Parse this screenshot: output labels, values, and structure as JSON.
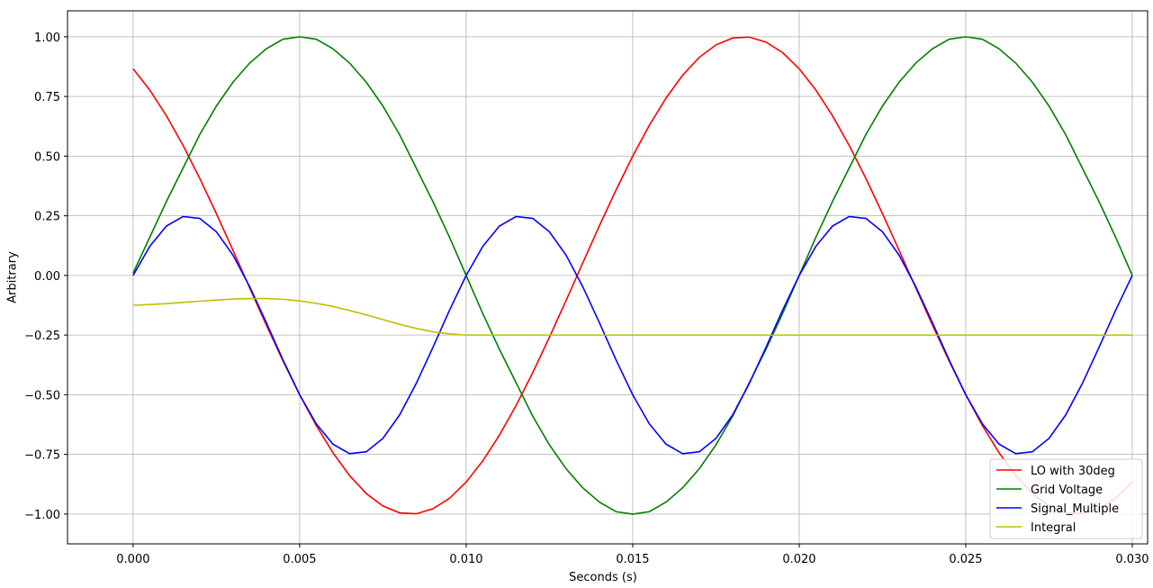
{
  "chart_data": {
    "type": "line",
    "xlabel": "Seconds (s)",
    "ylabel": "Arbitrary",
    "x": [
      0,
      0.0005,
      0.001,
      0.0015,
      0.002,
      0.0025,
      0.003,
      0.0035,
      0.004,
      0.0045,
      0.005,
      0.0055,
      0.006,
      0.0065,
      0.007,
      0.0075,
      0.008,
      0.0085,
      0.009,
      0.0095,
      0.01,
      0.0105,
      0.011,
      0.0115,
      0.012,
      0.0125,
      0.013,
      0.0135,
      0.014,
      0.0145,
      0.015,
      0.0155,
      0.016,
      0.0165,
      0.017,
      0.0175,
      0.018,
      0.0185,
      0.019,
      0.0195,
      0.02,
      0.0205,
      0.021,
      0.0215,
      0.022,
      0.0225,
      0.023,
      0.0235,
      0.024,
      0.0245,
      0.025,
      0.0255,
      0.026,
      0.0265,
      0.027,
      0.0275,
      0.028,
      0.0285,
      0.029,
      0.0295,
      0.03
    ],
    "series": [
      {
        "name": "LO with 30deg",
        "color": "#ff0000",
        "values": [
          0.866,
          0.777,
          0.669,
          0.545,
          0.407,
          0.259,
          0.105,
          -0.052,
          -0.208,
          -0.358,
          -0.5,
          -0.629,
          -0.743,
          -0.839,
          -0.914,
          -0.966,
          -0.995,
          -0.999,
          -0.978,
          -0.934,
          -0.866,
          -0.777,
          -0.669,
          -0.545,
          -0.407,
          -0.259,
          -0.105,
          0.052,
          0.208,
          0.358,
          0.5,
          0.629,
          0.743,
          0.839,
          0.914,
          0.966,
          0.995,
          0.999,
          0.978,
          0.934,
          0.866,
          0.777,
          0.669,
          0.545,
          0.407,
          0.259,
          0.105,
          -0.052,
          -0.208,
          -0.358,
          -0.5,
          -0.629,
          -0.743,
          -0.839,
          -0.914,
          -0.966,
          -0.995,
          -0.999,
          -0.978,
          -0.934,
          -0.866
        ]
      },
      {
        "name": "Grid Voltage",
        "color": "#008000",
        "values": [
          0.01,
          0.16,
          0.31,
          0.45,
          0.59,
          0.71,
          0.81,
          0.89,
          0.95,
          0.99,
          1.0,
          0.99,
          0.95,
          0.89,
          0.81,
          0.71,
          0.59,
          0.45,
          0.31,
          0.16,
          0.0,
          -0.16,
          -0.31,
          -0.45,
          -0.59,
          -0.71,
          -0.81,
          -0.89,
          -0.95,
          -0.99,
          -1.0,
          -0.99,
          -0.95,
          -0.89,
          -0.81,
          -0.71,
          -0.59,
          -0.45,
          -0.31,
          -0.16,
          0.0,
          0.16,
          0.31,
          0.45,
          0.59,
          0.71,
          0.81,
          0.89,
          0.95,
          0.99,
          1.0,
          0.99,
          0.95,
          0.89,
          0.81,
          0.71,
          0.59,
          0.45,
          0.31,
          0.16,
          0.0
        ]
      },
      {
        "name": "Signal_Multiple",
        "color": "#0000ff",
        "values": [
          0.0,
          0.122,
          0.207,
          0.247,
          0.239,
          0.183,
          0.085,
          -0.047,
          -0.198,
          -0.354,
          -0.5,
          -0.622,
          -0.707,
          -0.747,
          -0.739,
          -0.683,
          -0.585,
          -0.453,
          -0.302,
          -0.146,
          0.0,
          0.122,
          0.207,
          0.247,
          0.239,
          0.183,
          0.085,
          -0.047,
          -0.198,
          -0.354,
          -0.5,
          -0.622,
          -0.707,
          -0.747,
          -0.739,
          -0.683,
          -0.585,
          -0.453,
          -0.302,
          -0.146,
          0.0,
          0.122,
          0.207,
          0.247,
          0.239,
          0.183,
          0.085,
          -0.047,
          -0.198,
          -0.354,
          -0.5,
          -0.622,
          -0.707,
          -0.747,
          -0.739,
          -0.683,
          -0.585,
          -0.453,
          -0.302,
          -0.146,
          0.0
        ]
      },
      {
        "name": "Integral",
        "color": "#bfbf00",
        "values": [
          -0.125,
          -0.122,
          -0.118,
          -0.113,
          -0.108,
          -0.103,
          -0.099,
          -0.097,
          -0.097,
          -0.1,
          -0.107,
          -0.117,
          -0.13,
          -0.147,
          -0.165,
          -0.185,
          -0.205,
          -0.222,
          -0.236,
          -0.245,
          -0.25,
          -0.25,
          -0.25,
          -0.25,
          -0.25,
          -0.25,
          -0.25,
          -0.25,
          -0.25,
          -0.25,
          -0.25,
          -0.25,
          -0.25,
          -0.25,
          -0.25,
          -0.25,
          -0.25,
          -0.25,
          -0.25,
          -0.25,
          -0.25,
          -0.25,
          -0.25,
          -0.25,
          -0.25,
          -0.25,
          -0.25,
          -0.25,
          -0.25,
          -0.25,
          -0.25,
          -0.25,
          -0.25,
          -0.25,
          -0.25,
          -0.25,
          -0.25,
          -0.25,
          -0.25,
          -0.25,
          -0.25
        ]
      }
    ],
    "xlim": [
      -0.00197,
      0.03046
    ],
    "ylim": [
      -1.125,
      1.109
    ],
    "xticks": [
      {
        "value": 0,
        "label": "0.000"
      },
      {
        "value": 0.005,
        "label": "0.005"
      },
      {
        "value": 0.01,
        "label": "0.010"
      },
      {
        "value": 0.015,
        "label": "0.015"
      },
      {
        "value": 0.02,
        "label": "0.020"
      },
      {
        "value": 0.025,
        "label": "0.025"
      },
      {
        "value": 0.03,
        "label": "0.030"
      }
    ],
    "yticks": [
      {
        "value": -1,
        "label": "−1.00"
      },
      {
        "value": -0.75,
        "label": "−0.75"
      },
      {
        "value": -0.5,
        "label": "−0.50"
      },
      {
        "value": -0.25,
        "label": "−0.25"
      },
      {
        "value": 0,
        "label": "0.00"
      },
      {
        "value": 0.25,
        "label": "0.25"
      },
      {
        "value": 0.5,
        "label": "0.50"
      },
      {
        "value": 0.75,
        "label": "0.75"
      },
      {
        "value": 1,
        "label": "1.00"
      }
    ],
    "grid": true,
    "legend": "lower right"
  }
}
